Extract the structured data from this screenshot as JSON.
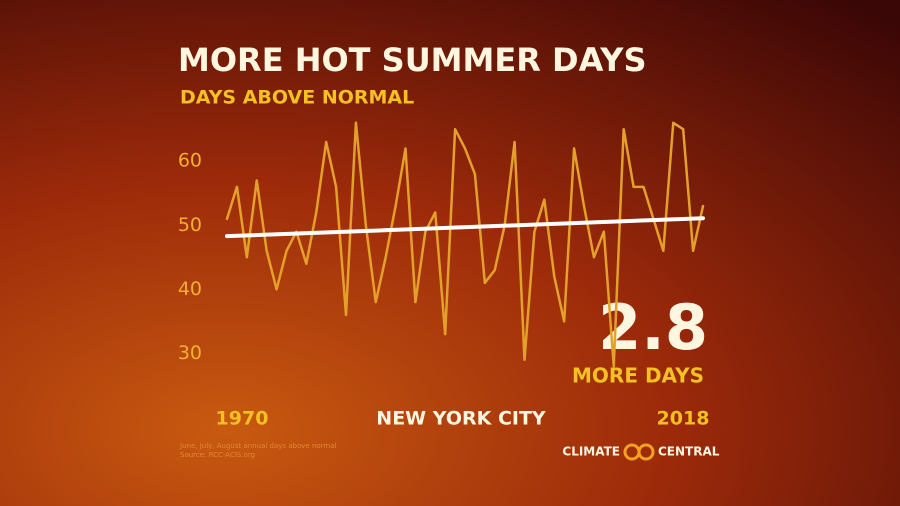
{
  "chart_data": {
    "type": "line",
    "title": "MORE HOT SUMMER DAYS",
    "subtitle": "DAYS ABOVE NORMAL",
    "location": "NEW YORK CITY",
    "annotation": {
      "value": "2.8",
      "text": "MORE DAYS"
    },
    "footnote": [
      "June, July, August annual days above normal",
      "Source: RCC-ACIS.org"
    ],
    "logo": [
      "CLIMATE",
      "CENTRAL"
    ],
    "x": [
      1970,
      1971,
      1972,
      1973,
      1974,
      1975,
      1976,
      1977,
      1978,
      1979,
      1980,
      1981,
      1982,
      1983,
      1984,
      1985,
      1986,
      1987,
      1988,
      1989,
      1990,
      1991,
      1992,
      1993,
      1994,
      1995,
      1996,
      1997,
      1998,
      1999,
      2000,
      2001,
      2002,
      2003,
      2004,
      2005,
      2006,
      2007,
      2008,
      2009,
      2010,
      2011,
      2012,
      2013,
      2014,
      2015,
      2016,
      2017,
      2018
    ],
    "series": [
      {
        "color": "#e3a12c",
        "values": [
          51,
          56,
          45,
          57,
          46,
          40,
          46,
          49,
          44,
          52,
          63,
          56,
          36,
          66,
          50,
          38,
          45,
          53,
          62,
          38,
          49,
          52,
          33,
          65,
          62,
          58,
          41,
          43,
          50,
          63,
          29,
          49,
          54,
          42,
          35,
          62,
          53,
          45,
          49,
          28,
          65,
          56,
          56,
          51,
          46,
          66,
          65,
          46,
          53
        ]
      }
    ],
    "trend": {
      "color": "#ffffff",
      "x": [
        1970,
        2018
      ],
      "values": [
        48.3,
        51.1
      ]
    },
    "xlim": [
      1970,
      2018
    ],
    "xticks": [
      1970,
      2018
    ],
    "ylim": [
      26,
      68
    ],
    "yticks": [
      30,
      40,
      50,
      60
    ]
  }
}
